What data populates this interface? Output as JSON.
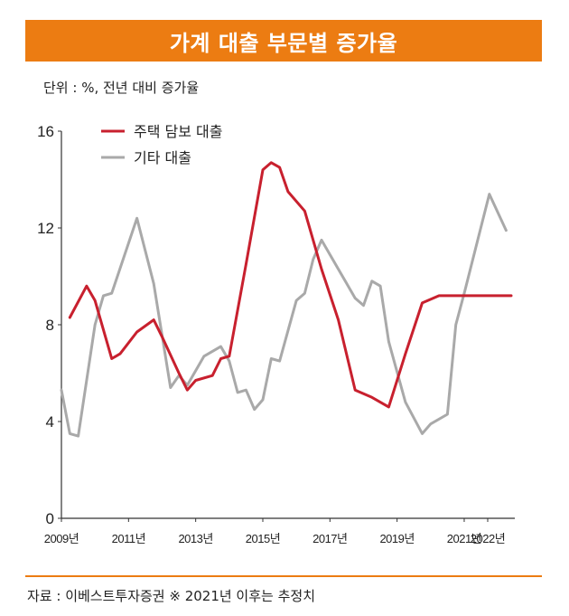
{
  "title": "가계 대출 부문별 증가율",
  "unit_label": "단위 : %, 전년 대비 증가율",
  "source": "자료 : 이베스트투자증권 ※ 2021년 이후는 추정치",
  "colors": {
    "accent": "#ec7c12",
    "series_housing": "#c8202e",
    "series_other": "#a9a9a9"
  },
  "chart_data": {
    "type": "line",
    "xlim": [
      2009,
      2022.4
    ],
    "ylim": [
      0,
      16
    ],
    "yticks": [
      0,
      4,
      8,
      12,
      16
    ],
    "xtick_labels": [
      {
        "x": 2009,
        "label": "2009년"
      },
      {
        "x": 2011,
        "label": "2011년"
      },
      {
        "x": 2013,
        "label": "2013년"
      },
      {
        "x": 2015,
        "label": "2015년"
      },
      {
        "x": 2017,
        "label": "2017년"
      },
      {
        "x": 2019,
        "label": "2019년"
      },
      {
        "x": 2021,
        "label": "2021년"
      },
      {
        "x": 2021.7,
        "label": "2022년"
      }
    ],
    "legend_position": "top-left",
    "grid": false,
    "series": [
      {
        "name": "주택 담보 대출",
        "color": "#c8202e",
        "points": [
          [
            2009.25,
            8.3
          ],
          [
            2009.75,
            9.6
          ],
          [
            2010.0,
            9.0
          ],
          [
            2010.5,
            6.6
          ],
          [
            2010.75,
            6.8
          ],
          [
            2011.25,
            7.7
          ],
          [
            2011.75,
            8.2
          ],
          [
            2012.0,
            7.5
          ],
          [
            2012.5,
            6.0
          ],
          [
            2012.75,
            5.3
          ],
          [
            2013.0,
            5.7
          ],
          [
            2013.5,
            5.9
          ],
          [
            2013.75,
            6.6
          ],
          [
            2014.0,
            6.7
          ],
          [
            2014.5,
            10.5
          ],
          [
            2015.0,
            14.4
          ],
          [
            2015.25,
            14.7
          ],
          [
            2015.5,
            14.5
          ],
          [
            2015.75,
            13.5
          ],
          [
            2016.25,
            12.7
          ],
          [
            2016.75,
            10.3
          ],
          [
            2017.25,
            8.2
          ],
          [
            2017.75,
            5.3
          ],
          [
            2018.25,
            5.0
          ],
          [
            2018.75,
            4.6
          ],
          [
            2019.25,
            6.8
          ],
          [
            2019.75,
            8.9
          ],
          [
            2020.25,
            9.2
          ],
          [
            2022.4,
            9.2
          ]
        ]
      },
      {
        "name": "기타 대출",
        "color": "#a9a9a9",
        "points": [
          [
            2009.0,
            5.3
          ],
          [
            2009.25,
            3.5
          ],
          [
            2009.5,
            3.4
          ],
          [
            2010.0,
            8.0
          ],
          [
            2010.25,
            9.2
          ],
          [
            2010.5,
            9.3
          ],
          [
            2011.25,
            12.4
          ],
          [
            2011.75,
            9.7
          ],
          [
            2012.25,
            5.4
          ],
          [
            2012.5,
            5.9
          ],
          [
            2012.75,
            5.5
          ],
          [
            2013.25,
            6.7
          ],
          [
            2013.75,
            7.1
          ],
          [
            2014.0,
            6.5
          ],
          [
            2014.25,
            5.2
          ],
          [
            2014.5,
            5.3
          ],
          [
            2014.75,
            4.5
          ],
          [
            2015.0,
            4.9
          ],
          [
            2015.25,
            6.6
          ],
          [
            2015.5,
            6.5
          ],
          [
            2016.0,
            9.0
          ],
          [
            2016.25,
            9.3
          ],
          [
            2016.5,
            10.7
          ],
          [
            2016.75,
            11.5
          ],
          [
            2017.25,
            10.3
          ],
          [
            2017.75,
            9.1
          ],
          [
            2018.0,
            8.8
          ],
          [
            2018.25,
            9.8
          ],
          [
            2018.5,
            9.6
          ],
          [
            2018.75,
            7.3
          ],
          [
            2019.25,
            4.8
          ],
          [
            2019.75,
            3.5
          ],
          [
            2020.0,
            3.9
          ],
          [
            2020.5,
            4.3
          ],
          [
            2020.75,
            8.0
          ],
          [
            2021.0,
            9.3
          ],
          [
            2021.75,
            13.4
          ],
          [
            2022.25,
            11.9
          ]
        ]
      }
    ]
  }
}
